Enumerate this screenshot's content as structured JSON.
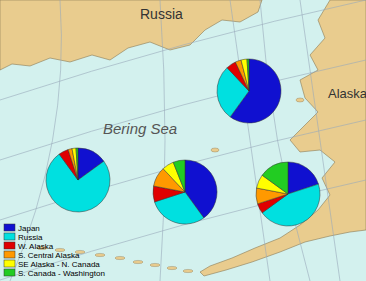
{
  "map_labels": {
    "land_west": "Russia",
    "land_east": "Alaska",
    "sea": "Bering Sea"
  },
  "chart_data": {
    "type": "pie",
    "categories": [
      "Japan",
      "Russia",
      "W. Alaska",
      "S. Central Alaska",
      "SE Alaska - N. Canada",
      "S. Canada - Washington"
    ],
    "colors": [
      "#1010d0",
      "#00e0e0",
      "#e00000",
      "#ff9900",
      "#ffff00",
      "#22cc22"
    ],
    "pies": [
      [
        60,
        28,
        5,
        3,
        3,
        1
      ],
      [
        15,
        75,
        5,
        2,
        2,
        1
      ],
      [
        40,
        30,
        8,
        10,
        6,
        6
      ],
      [
        20,
        45,
        5,
        8,
        7,
        15
      ]
    ],
    "legend": "lower left"
  }
}
